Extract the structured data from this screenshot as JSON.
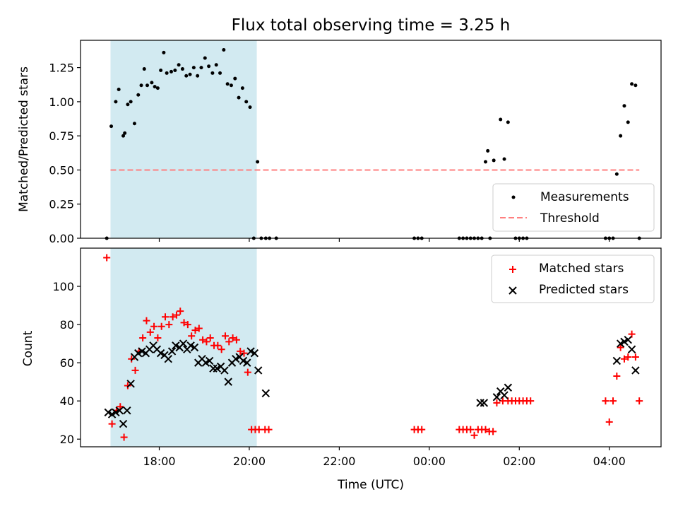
{
  "chart_data": [
    {
      "type": "scatter",
      "title": "Flux total observing time = 3.25 h",
      "ylabel": "Matched/Predicted stars",
      "xlabel": "",
      "ylim": [
        0,
        1.45
      ],
      "yticks": [
        "0.00",
        "0.25",
        "0.50",
        "0.75",
        "1.00",
        "1.25"
      ],
      "xticks": [
        "18:00",
        "20:00",
        "22:00",
        "00:00",
        "02:00",
        "04:00"
      ],
      "shaded_interval": [
        "16:55",
        "20:10"
      ],
      "grid": false,
      "legend_position": "lower right",
      "colors": {
        "measurements": "#000000",
        "threshold": "#ff7f7f",
        "shade": "#add8e6"
      },
      "series": [
        {
          "name": "Measurements",
          "kind": "points",
          "x": [
            "16:50",
            "16:56",
            "17:02",
            "17:06",
            "17:12",
            "17:14",
            "17:18",
            "17:22",
            "17:27",
            "17:32",
            "17:36",
            "17:40",
            "17:44",
            "17:50",
            "17:54",
            "17:58",
            "18:02",
            "18:06",
            "18:10",
            "18:16",
            "18:21",
            "18:26",
            "18:31",
            "18:36",
            "18:41",
            "18:46",
            "18:51",
            "18:56",
            "19:01",
            "19:06",
            "19:11",
            "19:16",
            "19:21",
            "19:26",
            "19:31",
            "19:36",
            "19:41",
            "19:46",
            "19:51",
            "19:56",
            "20:01",
            "20:06",
            "20:11",
            "20:16",
            "20:22",
            "20:27",
            "20:36",
            "23:40",
            "23:45",
            "23:50",
            "00:40",
            "00:45",
            "00:50",
            "00:55",
            "01:00",
            "01:05",
            "01:10",
            "01:15",
            "01:18",
            "01:21",
            "01:26",
            "01:35",
            "01:40",
            "01:45",
            "01:55",
            "02:00",
            "02:05",
            "02:10",
            "03:55",
            "04:00",
            "04:05",
            "04:10",
            "04:15",
            "04:20",
            "04:25",
            "04:30",
            "04:35",
            "04:40"
          ],
          "y": [
            0.0,
            0.82,
            1.0,
            1.09,
            0.75,
            0.77,
            0.98,
            1.0,
            0.84,
            1.05,
            1.12,
            1.24,
            1.12,
            1.14,
            1.11,
            1.1,
            1.23,
            1.36,
            1.21,
            1.22,
            1.23,
            1.27,
            1.24,
            1.19,
            1.2,
            1.25,
            1.19,
            1.25,
            1.32,
            1.26,
            1.21,
            1.27,
            1.21,
            1.38,
            1.13,
            1.12,
            1.17,
            1.03,
            1.1,
            1.0,
            0.96,
            0.0,
            0.56,
            0.0,
            0.0,
            0.0,
            0.0,
            0.0,
            0.0,
            0.0,
            0.0,
            0.0,
            0.0,
            0.0,
            0.0,
            0.0,
            0.0,
            0.56,
            0.64,
            0.0,
            0.57,
            0.87,
            0.58,
            0.85,
            0.0,
            0.0,
            0.0,
            0.0,
            0.0,
            0.0,
            0.0,
            0.47,
            0.75,
            0.97,
            0.85,
            1.13,
            1.12,
            0.0
          ]
        },
        {
          "name": "Threshold",
          "kind": "dashed-line",
          "x": [
            "16:55",
            "04:40"
          ],
          "y": [
            0.5,
            0.5
          ]
        }
      ]
    },
    {
      "type": "scatter",
      "title": "",
      "ylabel": "Count",
      "xlabel": "Time (UTC)",
      "ylim": [
        16,
        120
      ],
      "yticks": [
        "20",
        "40",
        "60",
        "80",
        "100"
      ],
      "xticks": [
        "18:00",
        "20:00",
        "22:00",
        "00:00",
        "02:00",
        "04:00"
      ],
      "shaded_interval": [
        "16:55",
        "20:10"
      ],
      "grid": false,
      "legend_position": "upper right",
      "colors": {
        "matched": "#ff0000",
        "predicted": "#000000",
        "shade": "#add8e6"
      },
      "series": [
        {
          "name": "Matched stars",
          "marker": "plus",
          "x": [
            "16:50",
            "16:57",
            "17:03",
            "17:08",
            "17:13",
            "17:18",
            "17:23",
            "17:28",
            "17:33",
            "17:38",
            "17:43",
            "17:48",
            "17:53",
            "17:58",
            "18:03",
            "18:08",
            "18:13",
            "18:18",
            "18:23",
            "18:28",
            "18:33",
            "18:38",
            "18:43",
            "18:48",
            "18:53",
            "18:58",
            "19:03",
            "19:08",
            "19:13",
            "19:18",
            "19:23",
            "19:28",
            "19:33",
            "19:38",
            "19:43",
            "19:48",
            "19:53",
            "19:58",
            "20:03",
            "20:08",
            "20:13",
            "20:21",
            "20:26",
            "23:40",
            "23:45",
            "23:50",
            "00:40",
            "00:45",
            "00:50",
            "00:55",
            "01:00",
            "01:05",
            "01:10",
            "01:15",
            "01:20",
            "01:25",
            "01:30",
            "01:38",
            "01:45",
            "01:50",
            "01:55",
            "02:00",
            "02:05",
            "02:10",
            "02:15",
            "03:55",
            "04:00",
            "04:05",
            "04:10",
            "04:15",
            "04:20",
            "04:25",
            "04:30",
            "04:35",
            "04:40"
          ],
          "y": [
            115,
            28,
            35,
            37,
            21,
            48,
            62,
            56,
            66,
            73,
            82,
            76,
            79,
            73,
            79,
            84,
            80,
            84,
            85,
            87,
            81,
            80,
            74,
            77,
            78,
            72,
            71,
            73,
            69,
            69,
            67,
            74,
            71,
            73,
            72,
            66,
            65,
            55,
            25,
            25,
            25,
            25,
            25,
            25,
            25,
            25,
            25,
            25,
            25,
            25,
            22,
            25,
            25,
            25,
            24,
            24,
            39,
            40,
            40,
            40,
            40,
            40,
            40,
            40,
            40,
            40,
            29,
            40,
            53,
            68,
            62,
            63,
            75,
            63,
            40
          ]
        },
        {
          "name": "Predicted stars",
          "marker": "x",
          "x": [
            "16:52",
            "16:57",
            "17:02",
            "17:07",
            "17:12",
            "17:17",
            "17:22",
            "17:27",
            "17:32",
            "17:37",
            "17:42",
            "17:47",
            "17:52",
            "17:57",
            "18:02",
            "18:07",
            "18:12",
            "18:17",
            "18:22",
            "18:27",
            "18:32",
            "18:37",
            "18:42",
            "18:47",
            "18:52",
            "18:57",
            "19:02",
            "19:07",
            "19:12",
            "19:17",
            "19:22",
            "19:27",
            "19:32",
            "19:37",
            "19:42",
            "19:47",
            "19:52",
            "19:57",
            "20:02",
            "20:07",
            "20:12",
            "20:22",
            "01:08",
            "01:13",
            "01:30",
            "01:35",
            "01:40",
            "01:45",
            "04:10",
            "04:15",
            "04:20",
            "04:25",
            "04:30",
            "04:35"
          ],
          "y": [
            34,
            33,
            34,
            35,
            28,
            35,
            49,
            63,
            65,
            66,
            65,
            67,
            69,
            67,
            65,
            64,
            62,
            66,
            69,
            68,
            70,
            67,
            69,
            68,
            60,
            62,
            60,
            61,
            57,
            57,
            58,
            56,
            50,
            60,
            62,
            63,
            61,
            60,
            66,
            65,
            56,
            44,
            39,
            39,
            42,
            45,
            43,
            47,
            61,
            70,
            71,
            72,
            67,
            56
          ]
        }
      ]
    }
  ]
}
